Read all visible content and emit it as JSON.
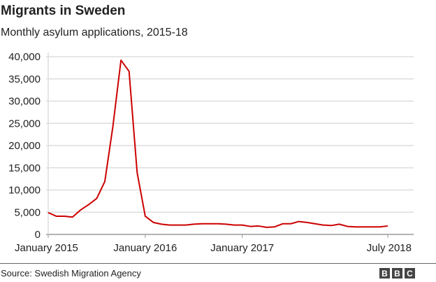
{
  "chart_data": {
    "type": "line",
    "title": "Migrants in Sweden",
    "subtitle": "Monthly asylum applications, 2015-18",
    "xlabel": "",
    "ylabel": "",
    "ylim": [
      0,
      40000
    ],
    "yticks": [
      0,
      5000,
      10000,
      15000,
      20000,
      25000,
      30000,
      35000,
      40000
    ],
    "ytick_labels": [
      "0",
      "5,000",
      "10,000",
      "15,000",
      "20,000",
      "25,000",
      "30,000",
      "35,000",
      "40,000"
    ],
    "xtick_labels": [
      {
        "label": "January 2015",
        "index": 0
      },
      {
        "label": "January 2016",
        "index": 12
      },
      {
        "label": "January 2017",
        "index": 24
      },
      {
        "label": "July 2018",
        "index": 42
      }
    ],
    "grid": true,
    "series": [
      {
        "name": "Asylum applications",
        "color": "#cc0000",
        "values": [
          4900,
          4100,
          4100,
          3900,
          5500,
          6700,
          8100,
          11900,
          24300,
          39200,
          36700,
          13900,
          4100,
          2700,
          2300,
          2100,
          2100,
          2100,
          2300,
          2400,
          2400,
          2400,
          2300,
          2100,
          2100,
          1800,
          1900,
          1600,
          1700,
          2400,
          2400,
          2900,
          2700,
          2400,
          2100,
          2000,
          2300,
          1800,
          1700,
          1700,
          1700,
          1700,
          1900
        ]
      }
    ]
  },
  "footer": {
    "source": "Source: Swedish Migration Agency",
    "logo": [
      "B",
      "B",
      "C"
    ]
  }
}
